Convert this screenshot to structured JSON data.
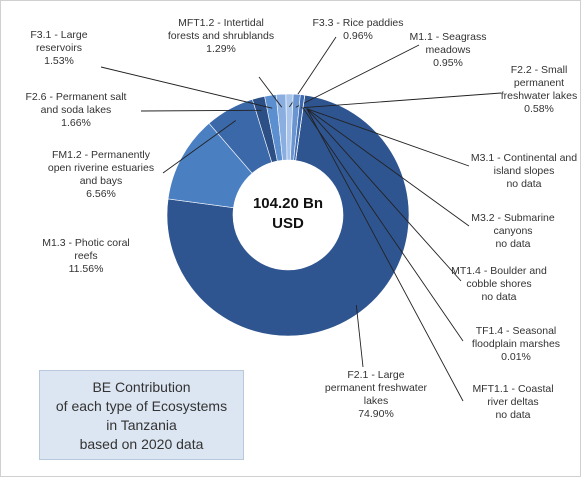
{
  "chart_data": {
    "type": "pie",
    "donut": true,
    "title": [
      "BE Contribution",
      "of each type of Ecosystems",
      "in Tanzania",
      "based on 2020 data"
    ],
    "center_label": "104.20 Bn USD",
    "categories": [
      "F2.1 - Large permanent freshwater lakes",
      "M1.3 - Photic coral reefs",
      "FM1.2 - Permanently open riverine estuaries and bays",
      "F2.6 - Permanent salt and soda lakes",
      "F3.1 - Large reservoirs",
      "MFT1.2 - Intertidal forests and shrublands",
      "F3.3 - Rice paddies",
      "M1.1 - Seagrass meadows",
      "F2.2 - Small permanent freshwater lakes",
      "TF1.4 - Seasonal floodplain marshes",
      "M3.1 - Continental and island slopes",
      "M3.2 - Submarine canyons",
      "MT1.4 - Boulder and cobble shores",
      "MFT1.1 - Coastal river deltas"
    ],
    "values": [
      74.9,
      11.56,
      6.56,
      1.66,
      1.53,
      1.29,
      0.96,
      0.95,
      0.58,
      0.01,
      null,
      null,
      null,
      null
    ],
    "value_labels": [
      "74.90%",
      "11.56%",
      "6.56%",
      "1.66%",
      "1.53%",
      "1.29%",
      "0.96%",
      "0.95%",
      "0.58%",
      "0.01%",
      "no data",
      "no data",
      "no data",
      "no data"
    ],
    "colors": [
      "#2f5591",
      "#4a7fc1",
      "#3b68a9",
      "#2c4f86",
      "#5b8fd0",
      "#8aaee0",
      "#a9c4ea",
      "#6b95d0",
      "#3f6cb0",
      "#1f3f73",
      null,
      null,
      null,
      null
    ]
  }
}
